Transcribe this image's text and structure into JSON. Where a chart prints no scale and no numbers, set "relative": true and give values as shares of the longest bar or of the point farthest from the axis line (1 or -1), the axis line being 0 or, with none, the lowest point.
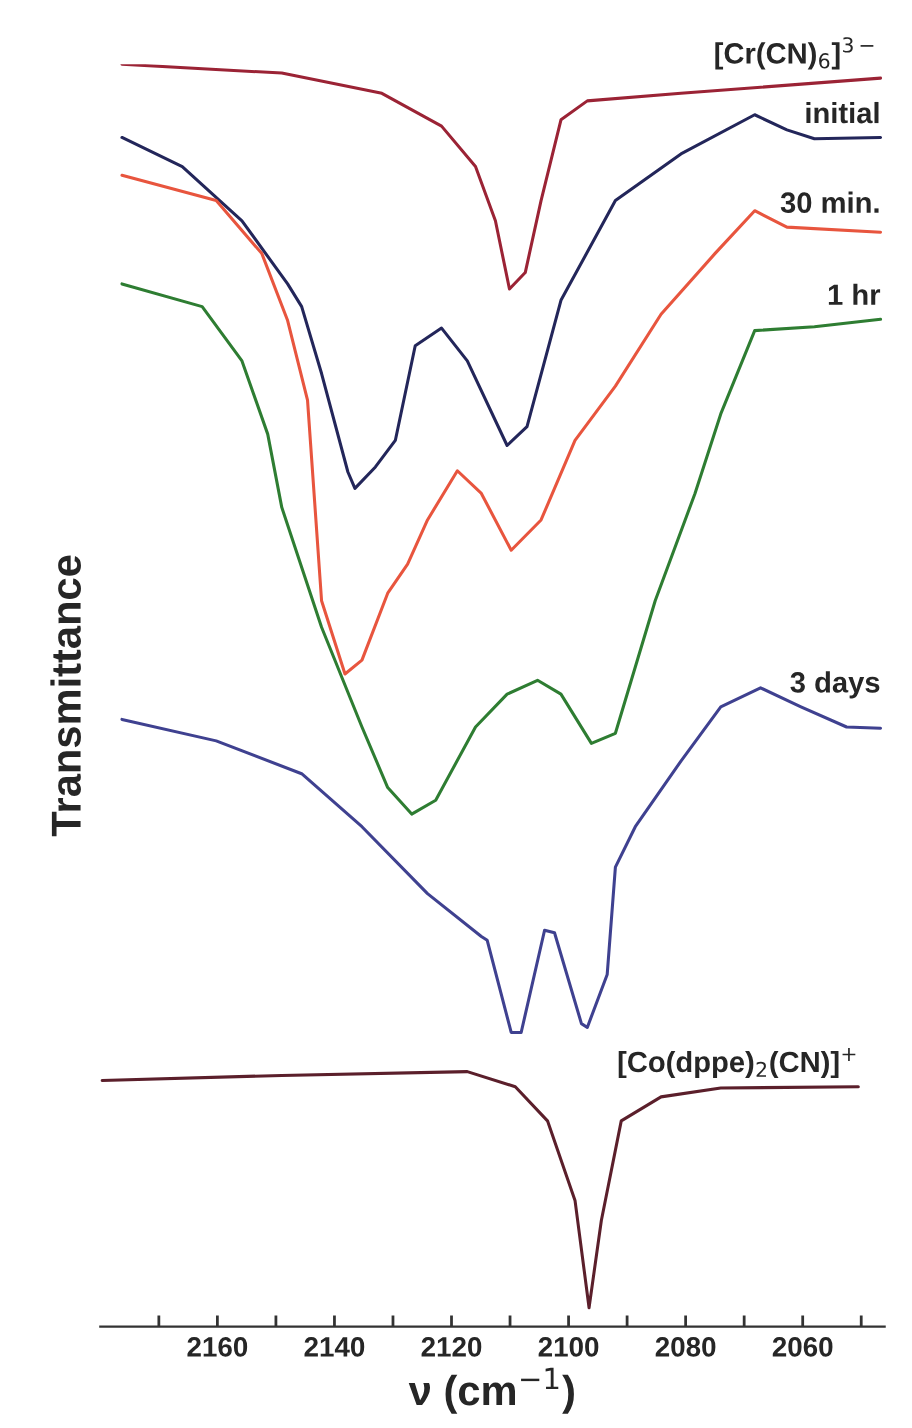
{
  "chart_data": {
    "type": "line",
    "relative": true,
    "xlabel": "ν (cm$^{−1}$)",
    "ylabel": "Transmittance",
    "tick_labels": "x",
    "xlim": [
      2180,
      2046
    ],
    "xticks": [
      {
        "value": 2170,
        "label": null
      },
      2160,
      {
        "value": 2150,
        "label": null
      },
      2140,
      {
        "value": 2130,
        "label": null
      },
      2120,
      {
        "value": 2110,
        "label": null
      },
      2100,
      {
        "value": 2090,
        "label": null
      },
      2080,
      {
        "value": 2070,
        "label": null
      },
      2060,
      {
        "value": 2050,
        "label": null
      }
    ],
    "series": [
      {
        "name": "[Cr(CN)$_{6}$]$^{3−}$",
        "color": "#9b2335",
        "x": [
          2176.3,
          2149.0,
          2131.9,
          2121.7,
          2115.9,
          2112.5,
          2110.1,
          2107.4,
          2104.7,
          2101.3,
          2096.8,
          2080.8,
          2046.7
        ],
        "values": [
          1.0,
          0.993,
          0.977,
          0.951,
          0.919,
          0.876,
          0.822,
          0.835,
          0.892,
          0.956,
          0.971,
          0.977,
          0.989
        ]
      },
      {
        "name": "initial",
        "color": "#23265a",
        "x": [
          2176.3,
          2166.0,
          2155.8,
          2148.0,
          2145.6,
          2142.2,
          2137.7,
          2136.5,
          2133.0,
          2129.6,
          2126.2,
          2121.7,
          2117.3,
          2110.5,
          2107.1,
          2101.3,
          2092.0,
          2080.8,
          2068.2,
          2062.7,
          2058.0,
          2046.7
        ],
        "values": [
          0.942,
          0.919,
          0.876,
          0.826,
          0.808,
          0.755,
          0.677,
          0.664,
          0.681,
          0.702,
          0.777,
          0.791,
          0.765,
          0.698,
          0.713,
          0.813,
          0.892,
          0.929,
          0.96,
          0.948,
          0.941,
          0.942
        ]
      },
      {
        "name": "30 min.",
        "color": "#e8553e",
        "x": [
          2176.3,
          2160.2,
          2152.4,
          2148.0,
          2144.6,
          2142.2,
          2138.2,
          2135.3,
          2130.9,
          2127.5,
          2124.1,
          2119.0,
          2114.9,
          2109.8,
          2104.7,
          2098.9,
          2092.0,
          2084.2,
          2075.0,
          2068.2,
          2062.7,
          2046.7
        ],
        "values": [
          0.912,
          0.892,
          0.85,
          0.797,
          0.734,
          0.575,
          0.517,
          0.528,
          0.581,
          0.604,
          0.639,
          0.678,
          0.66,
          0.615,
          0.639,
          0.702,
          0.745,
          0.802,
          0.85,
          0.884,
          0.871,
          0.867
        ]
      },
      {
        "name": "1 hr",
        "color": "#2e7d32",
        "x": [
          2176.3,
          2162.6,
          2155.8,
          2151.4,
          2149.0,
          2142.2,
          2135.3,
          2130.9,
          2126.8,
          2122.7,
          2115.9,
          2110.5,
          2105.3,
          2101.3,
          2096.1,
          2092.0,
          2085.2,
          2078.4,
          2074.0,
          2068.2,
          2058.0,
          2046.7
        ],
        "values": [
          0.826,
          0.808,
          0.765,
          0.707,
          0.649,
          0.554,
          0.475,
          0.427,
          0.406,
          0.417,
          0.475,
          0.501,
          0.512,
          0.501,
          0.462,
          0.47,
          0.575,
          0.66,
          0.723,
          0.789,
          0.792,
          0.798
        ]
      },
      {
        "name": "3 days",
        "color": "#3f4190",
        "x": [
          2176.3,
          2160.2,
          2145.6,
          2135.3,
          2124.1,
          2114.9,
          2113.9,
          2109.8,
          2108.1,
          2104.1,
          2102.4,
          2097.8,
          2096.8,
          2093.4,
          2092.0,
          2088.6,
          2080.8,
          2074.0,
          2067.2,
          2060.3,
          2052.5,
          2046.7
        ],
        "values": [
          0.481,
          0.464,
          0.438,
          0.396,
          0.343,
          0.309,
          0.306,
          0.233,
          0.233,
          0.314,
          0.312,
          0.24,
          0.237,
          0.279,
          0.364,
          0.396,
          0.448,
          0.491,
          0.506,
          0.491,
          0.475,
          0.474
        ]
      },
      {
        "name": "[Co(dppe)$_{2}$(CN)]$^{+}$",
        "color": "#5b1f2b",
        "x": [
          2179.7,
          2149.0,
          2117.3,
          2109.1,
          2103.6,
          2098.9,
          2096.5,
          2094.4,
          2091.0,
          2084.2,
          2074.0,
          2050.5
        ],
        "values": [
          0.195,
          0.199,
          0.202,
          0.19,
          0.163,
          0.1,
          0.015,
          0.084,
          0.163,
          0.182,
          0.189,
          0.19
        ]
      }
    ]
  }
}
